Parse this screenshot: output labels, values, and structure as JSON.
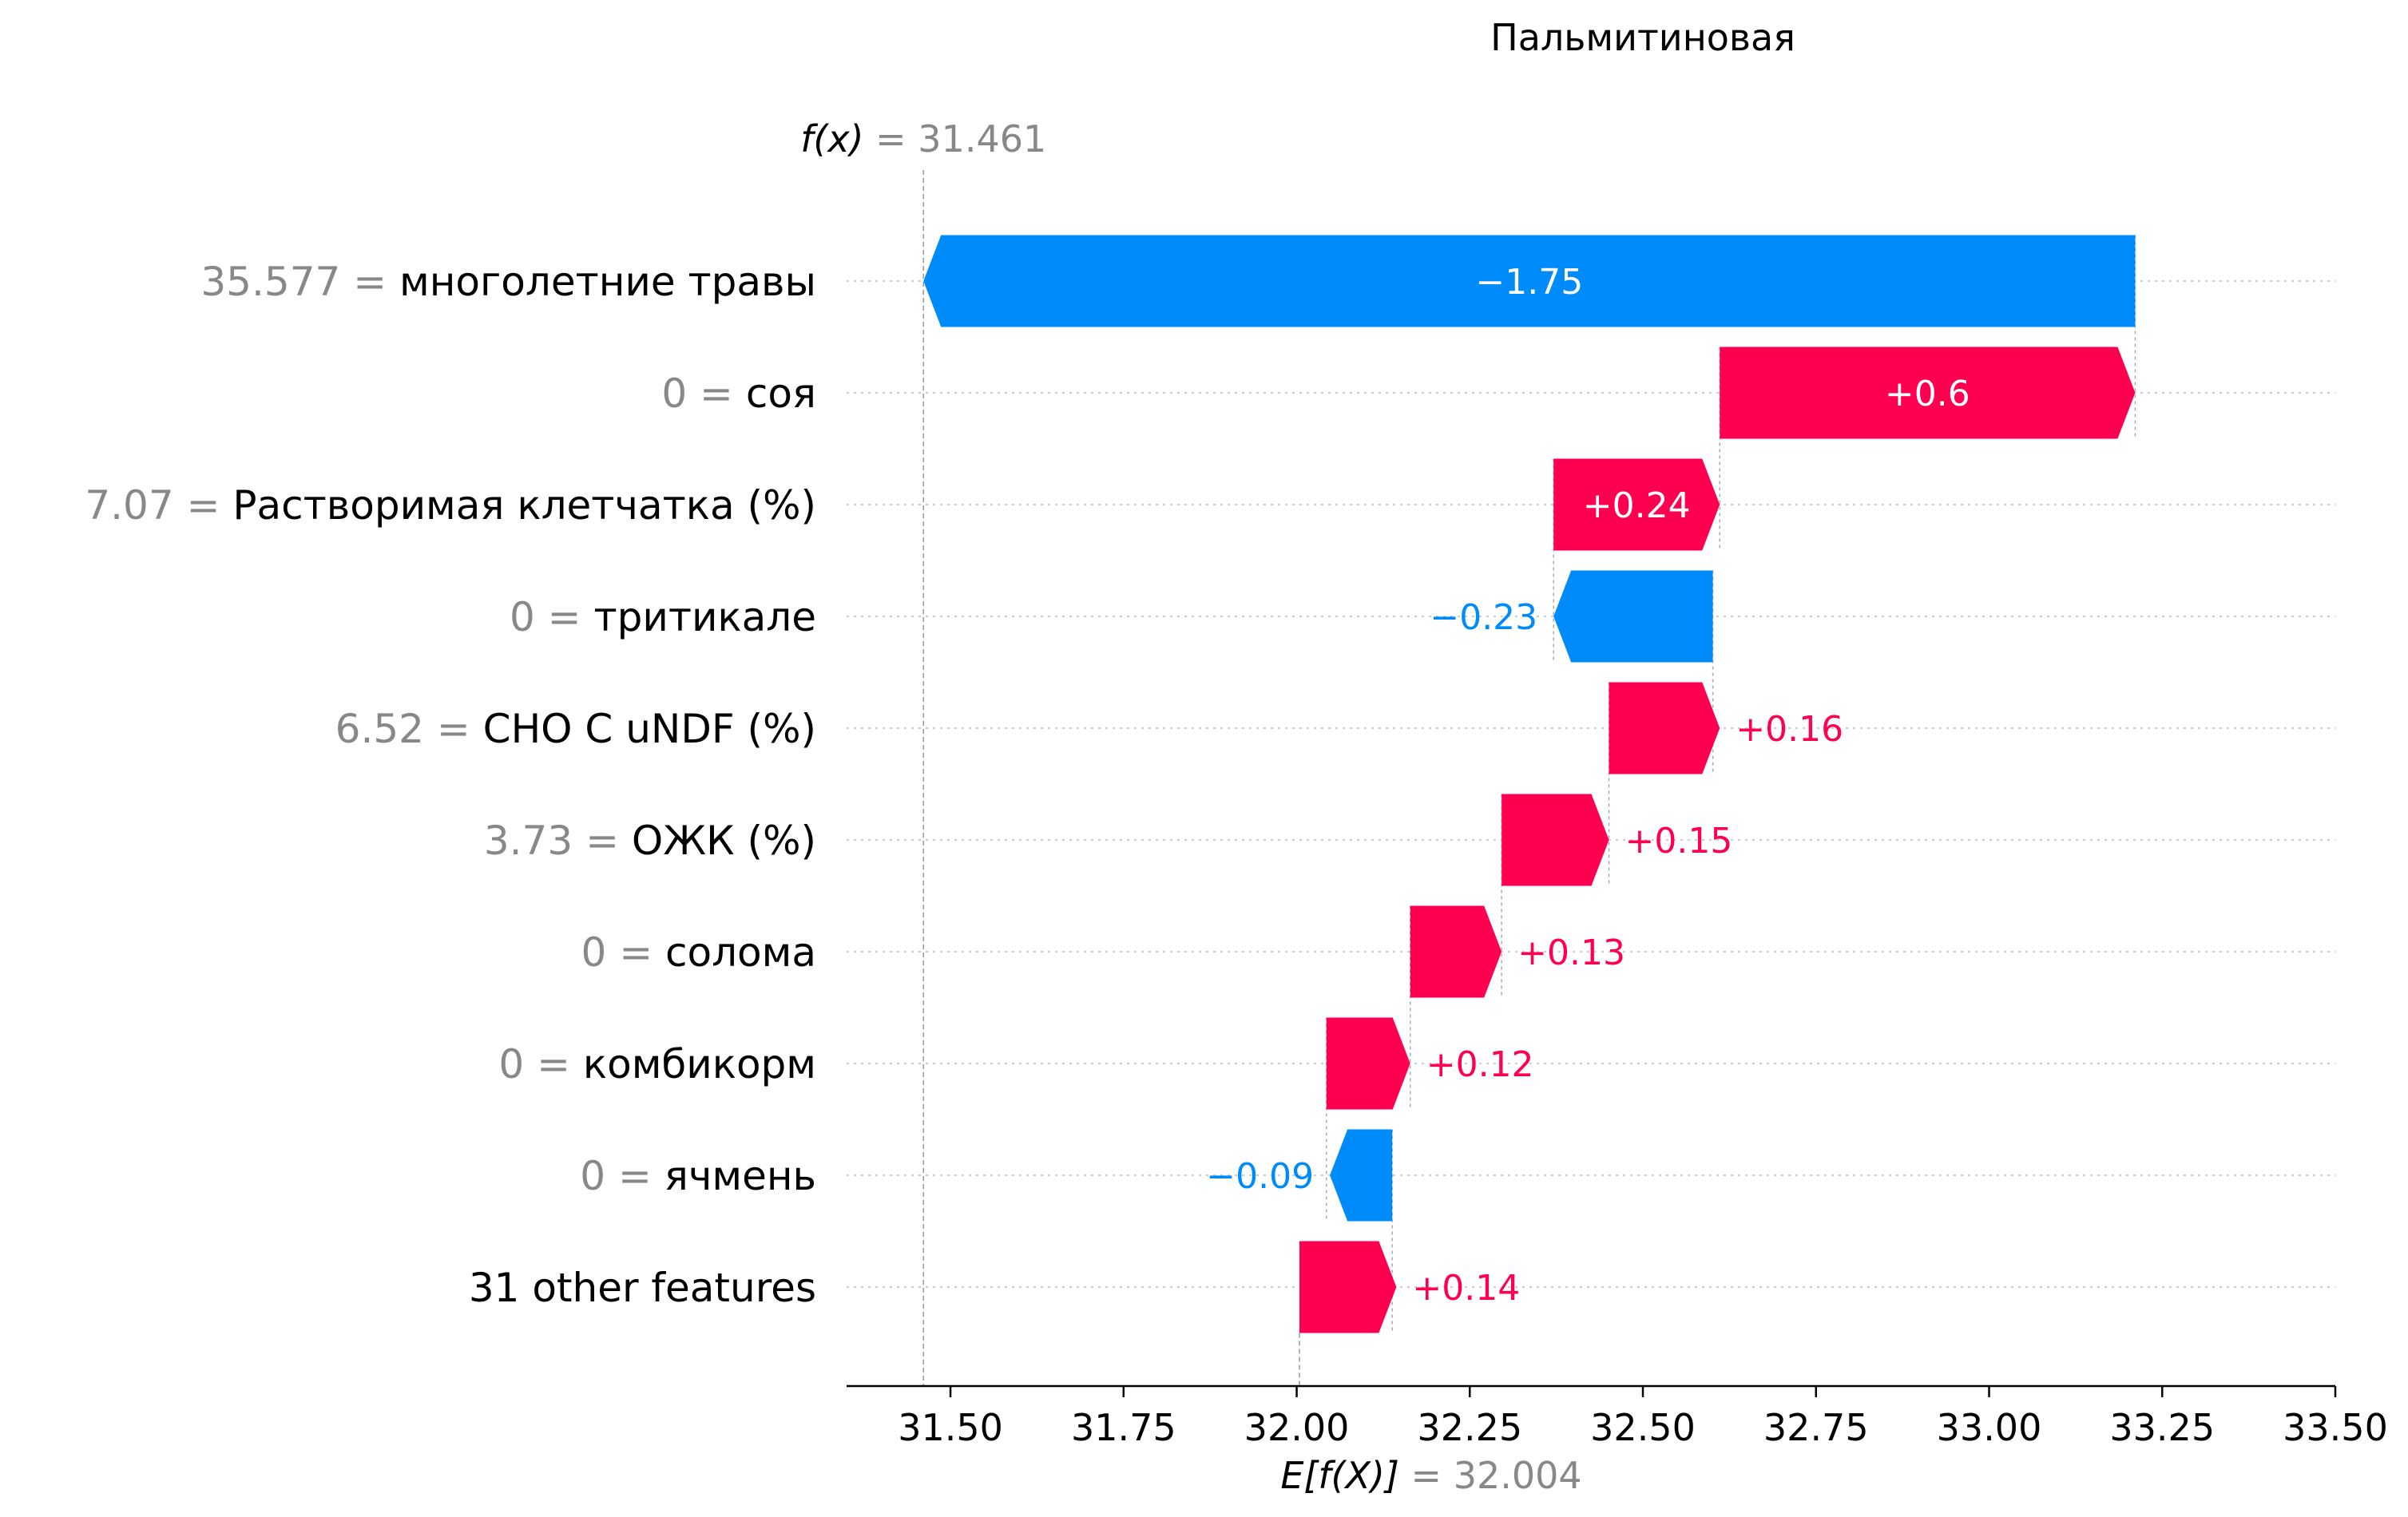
{
  "chart_data": {
    "type": "waterfall",
    "title": "Пальмитиновая",
    "fx": {
      "label_prefix": "f(x)",
      "eq": "=",
      "value": 31.461,
      "value_text": "31.461"
    },
    "efx": {
      "label_prefix": "E[f(X)]",
      "eq": "=",
      "value": 32.004,
      "value_text": "32.004"
    },
    "xlim": [
      31.35,
      33.5
    ],
    "xticks": [
      31.5,
      31.75,
      32.0,
      32.25,
      32.5,
      32.75,
      33.0,
      33.25,
      33.5
    ],
    "xtick_labels": [
      "31.50",
      "31.75",
      "32.00",
      "32.25",
      "32.50",
      "32.75",
      "33.00",
      "33.25",
      "33.50"
    ],
    "features": [
      {
        "value_text": "35.577",
        "eq": "=",
        "name": "многолетние травы",
        "start": 33.211,
        "end": 31.461,
        "contribution": -1.75,
        "label": "−1.75"
      },
      {
        "value_text": "0",
        "eq": "=",
        "name": "соя",
        "start": 32.611,
        "end": 33.211,
        "contribution": 0.6,
        "label": "+0.6"
      },
      {
        "value_text": "7.07",
        "eq": "=",
        "name": "Растворимая клетчатка (%)",
        "start": 32.371,
        "end": 32.611,
        "contribution": 0.24,
        "label": "+0.24"
      },
      {
        "value_text": "0",
        "eq": "=",
        "name": "тритикале",
        "start": 32.601,
        "end": 32.371,
        "contribution": -0.23,
        "label": "−0.23"
      },
      {
        "value_text": "6.52",
        "eq": "=",
        "name": "CHO C uNDF (%)",
        "start": 32.451,
        "end": 32.611,
        "contribution": 0.16,
        "label": "+0.16"
      },
      {
        "value_text": "3.73",
        "eq": "=",
        "name": "ОЖК (%)",
        "start": 32.296,
        "end": 32.451,
        "contribution": 0.15,
        "label": "+0.15"
      },
      {
        "value_text": "0",
        "eq": "=",
        "name": "солома",
        "start": 32.164,
        "end": 32.296,
        "contribution": 0.13,
        "label": "+0.13"
      },
      {
        "value_text": "0",
        "eq": "=",
        "name": "комбикорм",
        "start": 32.043,
        "end": 32.164,
        "contribution": 0.12,
        "label": "+0.12"
      },
      {
        "value_text": "0",
        "eq": "=",
        "name": "ячмень",
        "start": 32.138,
        "end": 32.048,
        "contribution": -0.09,
        "label": "−0.09"
      },
      {
        "value_text": "",
        "eq": "",
        "name": "31 other features",
        "start": 32.004,
        "end": 32.144,
        "contribution": 0.14,
        "label": "+0.14"
      }
    ],
    "colors": {
      "positive": "#ff0051",
      "negative": "#008bfb",
      "value_gray": "#888888",
      "text": "#000000",
      "grid": "#cccccc"
    }
  }
}
